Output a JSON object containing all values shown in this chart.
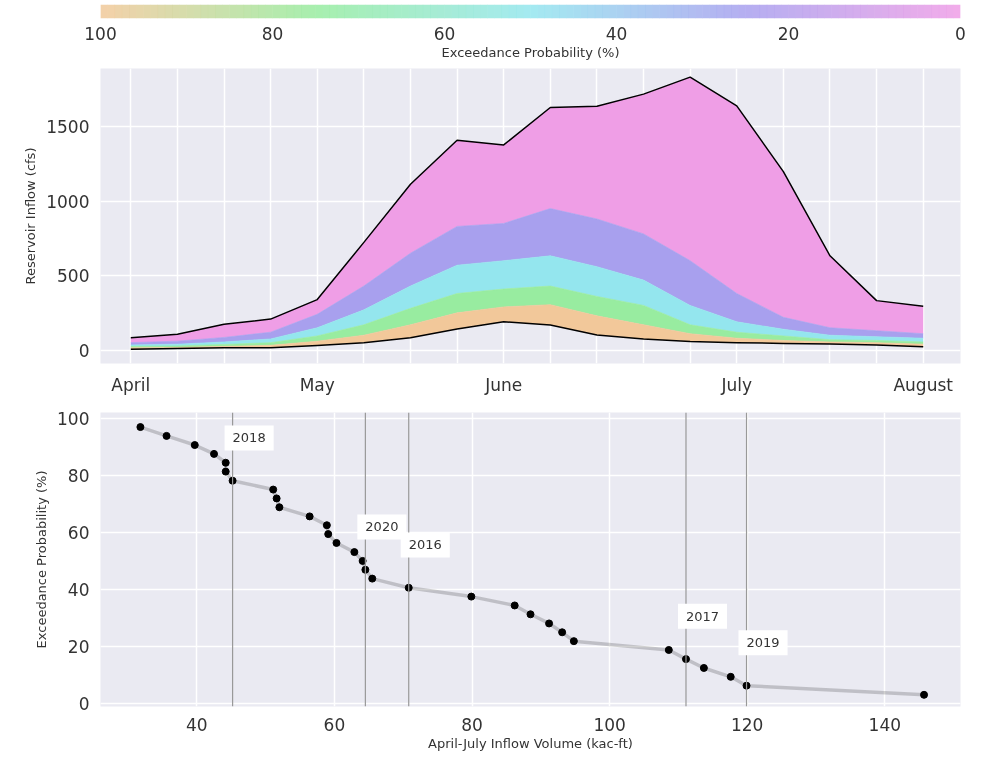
{
  "chart_data": [
    {
      "type": "area",
      "ylabel": "Reservoir Inflow (cfs)",
      "clabel": "Exceedance Probability (%)",
      "clim": [
        100,
        0
      ],
      "cticks": [
        100,
        80,
        60,
        40,
        20,
        0
      ],
      "categories": [
        "April",
        null,
        null,
        null,
        "May",
        null,
        null,
        null,
        "June",
        null,
        null,
        null,
        null,
        "July",
        null,
        null,
        null,
        "August"
      ],
      "series": [
        {
          "color": "#ef9ee6",
          "values": [
            83,
            106,
            174,
            208,
            339,
            723,
            1113,
            1408,
            1377,
            1628,
            1637,
            1718,
            1832,
            1639,
            1198,
            633,
            332,
            294
          ]
        },
        {
          "color": "#a8a0ee",
          "values": [
            50,
            60,
            85,
            120,
            240,
            430,
            650,
            830,
            850,
            950,
            880,
            780,
            600,
            380,
            220,
            150,
            130,
            110
          ]
        },
        {
          "color": "#94e6ee",
          "values": [
            35,
            40,
            55,
            75,
            150,
            270,
            430,
            570,
            600,
            633,
            560,
            470,
            300,
            190,
            140,
            100,
            90,
            80
          ]
        },
        {
          "color": "#98eca0",
          "values": [
            25,
            28,
            38,
            50,
            95,
            170,
            280,
            380,
            410,
            430,
            360,
            300,
            170,
            120,
            95,
            70,
            65,
            55
          ]
        },
        {
          "color": "#f2c89a",
          "values": [
            15,
            18,
            25,
            32,
            60,
            100,
            170,
            250,
            290,
            305,
            230,
            170,
            110,
            80,
            65,
            55,
            50,
            40
          ]
        },
        {
          "type": "line",
          "color": "#000000",
          "values": [
            5,
            10,
            15,
            15,
            30,
            50,
            83,
            142,
            190,
            168,
            102,
            75,
            57,
            50,
            45,
            41,
            34,
            22
          ]
        }
      ],
      "ylim": [
        -90,
        1890
      ],
      "yticks": [
        0,
        500,
        1000,
        1500
      ],
      "grid": true
    },
    {
      "type": "line",
      "xlabel": "April-July Inflow Volume (kac-ft)",
      "ylabel": "Exceedance Probability (%)",
      "marker": "circle",
      "x": [
        31.8,
        35.6,
        39.7,
        42.5,
        44.2,
        44.2,
        45.2,
        51.1,
        51.6,
        52.0,
        56.4,
        58.9,
        59.1,
        60.3,
        62.9,
        64.1,
        64.5,
        65.5,
        70.8,
        79.9,
        86.2,
        88.5,
        91.2,
        93.1,
        94.8,
        108.6,
        111.1,
        113.7,
        117.6,
        119.9,
        145.7
      ],
      "series": [
        {
          "color": "#000000",
          "values": [
            96.9,
            93.8,
            90.6,
            87.5,
            84.4,
            81.3,
            78.1,
            75.0,
            71.9,
            68.8,
            65.6,
            62.5,
            59.4,
            56.3,
            53.1,
            50.0,
            46.9,
            43.8,
            40.6,
            37.5,
            34.4,
            31.3,
            28.1,
            25.0,
            21.9,
            18.8,
            15.6,
            12.5,
            9.4,
            6.3,
            3.1
          ]
        }
      ],
      "ref_lines": [
        {
          "axis": "x",
          "value": 45.2,
          "color": "#999999"
        },
        {
          "axis": "x",
          "value": 64.5,
          "color": "#999999"
        },
        {
          "axis": "x",
          "value": 70.8,
          "color": "#999999"
        },
        {
          "axis": "x",
          "value": 111.1,
          "color": "#999999"
        },
        {
          "axis": "x",
          "value": 119.9,
          "color": "#999999"
        }
      ],
      "annotations": [
        "2018",
        "2020",
        "2016",
        "2017",
        "2019"
      ],
      "xlim": [
        26,
        151
      ],
      "ylim": [
        -1,
        102
      ],
      "xticks": [
        40,
        60,
        80,
        100,
        120,
        140
      ],
      "yticks": [
        0,
        20,
        40,
        60,
        80,
        100
      ],
      "grid": true
    }
  ]
}
